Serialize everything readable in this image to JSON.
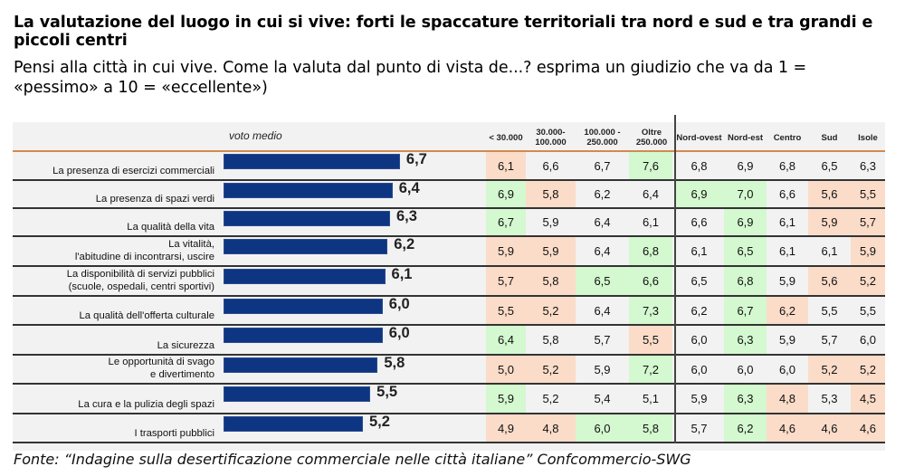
{
  "title": "La valutazione del luogo in cui si vive: forti le spaccature territoriali tra nord e sud e tra grandi e piccoli centri",
  "subtitle": "Pensi alla città in cui vive. Come la valuta dal punto di vista de...? esprima un giudizio che va da 1 = «pessimo» a 10 = «eccellente»)",
  "source": "Fonte: “Indagine sulla desertificazione commerciale nelle città italiane” Confcommercio-SWG",
  "colors": {
    "bar": "#0e3582",
    "low": "#fbdcc9",
    "high": "#d4f8cf",
    "background": "#f2f2f2",
    "header_line": "#d4894e"
  },
  "chart_data": {
    "type": "bar",
    "orientation": "horizontal",
    "title": "voto medio",
    "categories": [
      "La presenza di esercizi commerciali",
      "La presenza di spazi verdi",
      "La qualità della vita",
      "La vitalità,\nl'abitudine di incontrarsi, uscire",
      "La disponibilità di servizi pubblici\n(scuole, ospedali, centri sportivi)",
      "La qualità dell'offerta culturale",
      "La sicurezza",
      "Le opportunità di svago\ne divertimento",
      "La cura e la pulizia degli spazi",
      "I trasporti pubblici"
    ],
    "values": [
      6.7,
      6.4,
      6.3,
      6.2,
      6.1,
      6.0,
      6.0,
      5.8,
      5.5,
      5.2
    ],
    "value_labels": [
      "6,7",
      "6,4",
      "6,3",
      "6,2",
      "6,1",
      "6,0",
      "6,0",
      "5,8",
      "5,5",
      "5,2"
    ],
    "xlim": [
      0,
      10
    ],
    "table": {
      "columns": [
        "< 30.000",
        "30.000-\n100.000",
        "100.000 -\n250.000",
        "Oltre\n250.000",
        "Nord-ovest",
        "Nord-est",
        "Centro",
        "Sud",
        "Isole"
      ],
      "rows": [
        [
          "6,1",
          "6,6",
          "6,7",
          "7,6",
          "6,8",
          "6,9",
          "6,8",
          "6,5",
          "6,3"
        ],
        [
          "6,9",
          "5,8",
          "6,2",
          "6,4",
          "6,9",
          "7,0",
          "6,6",
          "5,6",
          "5,5"
        ],
        [
          "6,7",
          "5,9",
          "6,4",
          "6,1",
          "6,6",
          "6,9",
          "6,1",
          "5,9",
          "5,7"
        ],
        [
          "5,9",
          "5,9",
          "6,4",
          "6,8",
          "6,1",
          "6,5",
          "6,1",
          "6,1",
          "5,9"
        ],
        [
          "5,7",
          "5,8",
          "6,5",
          "6,6",
          "6,5",
          "6,8",
          "5,9",
          "5,6",
          "5,2"
        ],
        [
          "5,5",
          "5,2",
          "6,4",
          "7,3",
          "6,2",
          "6,7",
          "6,2",
          "5,5",
          "5,5"
        ],
        [
          "6,4",
          "5,8",
          "5,7",
          "5,5",
          "6,0",
          "6,3",
          "5,9",
          "5,7",
          "6,0"
        ],
        [
          "5,0",
          "5,2",
          "5,9",
          "7,2",
          "6,0",
          "6,0",
          "6,0",
          "5,2",
          "5,2"
        ],
        [
          "5,9",
          "5,2",
          "5,4",
          "5,1",
          "5,9",
          "6,3",
          "4,8",
          "5,3",
          "4,5"
        ],
        [
          "4,9",
          "4,8",
          "6,0",
          "5,8",
          "5,7",
          "6,2",
          "4,6",
          "4,6",
          "4,6"
        ]
      ],
      "highlight": [
        [
          "low",
          "",
          "",
          "high",
          "",
          "",
          "",
          "",
          ""
        ],
        [
          "high",
          "low",
          "",
          "",
          "high",
          "high",
          "",
          "low",
          "low"
        ],
        [
          "high",
          "",
          "",
          "",
          "",
          "high",
          "",
          "low",
          "low"
        ],
        [
          "low",
          "low",
          "",
          "high",
          "",
          "high",
          "",
          "",
          "low"
        ],
        [
          "low",
          "low",
          "high",
          "high",
          "",
          "high",
          "",
          "low",
          "low"
        ],
        [
          "low",
          "low",
          "",
          "high",
          "",
          "high",
          "low",
          "",
          ""
        ],
        [
          "high",
          "",
          "",
          "low",
          "",
          "high",
          "",
          "",
          ""
        ],
        [
          "low",
          "low",
          "",
          "high",
          "",
          "",
          "",
          "low",
          "low"
        ],
        [
          "high",
          "",
          "",
          "",
          "",
          "high",
          "low",
          "",
          "low"
        ],
        [
          "low",
          "low",
          "high",
          "high",
          "",
          "high",
          "low",
          "low",
          "low"
        ]
      ]
    }
  }
}
